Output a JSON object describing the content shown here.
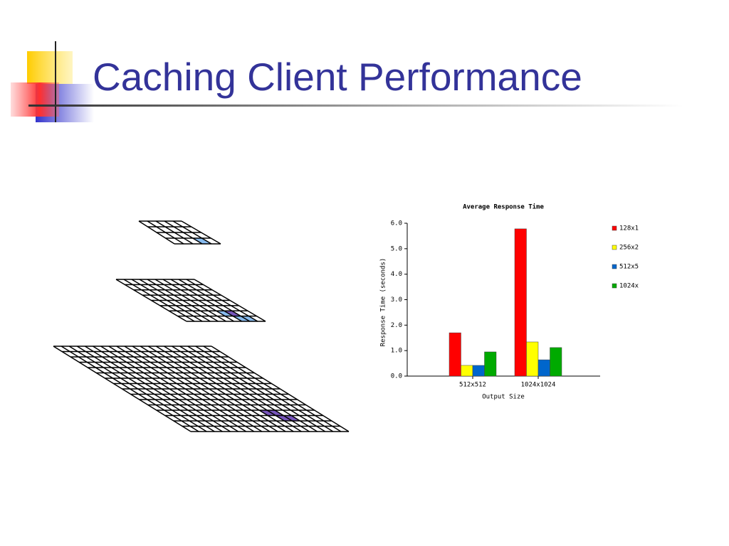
{
  "slide_title": "Caching Client Performance",
  "chart_data": {
    "type": "bar",
    "title": "Average Response Time",
    "x_label": "Output Size",
    "y_label": "Response Time (seconds)",
    "categories": [
      "512x512",
      "1024x1024"
    ],
    "series": [
      {
        "name": "128x1",
        "color": "#ff0000",
        "values": [
          1.7,
          5.78
        ]
      },
      {
        "name": "256x2",
        "color": "#ffff00",
        "values": [
          0.42,
          1.34
        ]
      },
      {
        "name": "512x5",
        "color": "#0066cc",
        "values": [
          0.42,
          0.64
        ]
      },
      {
        "name": "1024x",
        "color": "#00aa00",
        "values": [
          0.95,
          1.12
        ]
      }
    ],
    "ylim": [
      0,
      6
    ],
    "yticks": [
      {
        "value": 0,
        "label": "0.0"
      },
      {
        "value": 1,
        "label": "1.0"
      },
      {
        "value": 2,
        "label": "2.0"
      },
      {
        "value": 3,
        "label": "3.0"
      },
      {
        "value": 4,
        "label": "4.0"
      },
      {
        "value": 5,
        "label": "5.0"
      },
      {
        "value": 6,
        "label": "6.0"
      }
    ],
    "grid": false,
    "legend": "right"
  }
}
